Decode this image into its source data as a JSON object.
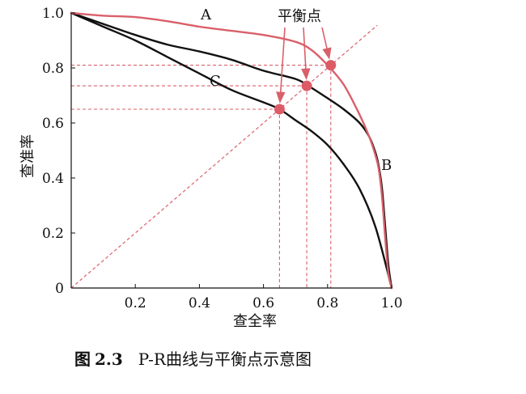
{
  "chart_data": {
    "type": "line",
    "xlabel": "查全率",
    "ylabel": "查准率",
    "xlim": [
      0,
      1
    ],
    "ylim": [
      0,
      1
    ],
    "x_ticks": [
      "0.2",
      "0.4",
      "0.6",
      "0.8",
      "1.0"
    ],
    "y_ticks": [
      "0",
      "0.2",
      "0.4",
      "0.6",
      "0.8",
      "1.0"
    ],
    "grid": false,
    "series": [
      {
        "name": "A",
        "color": "#d9606a",
        "points": [
          [
            0,
            1.0
          ],
          [
            0.1,
            0.99
          ],
          [
            0.2,
            0.985
          ],
          [
            0.3,
            0.97
          ],
          [
            0.4,
            0.95
          ],
          [
            0.5,
            0.935
          ],
          [
            0.6,
            0.92
          ],
          [
            0.7,
            0.895
          ],
          [
            0.75,
            0.865
          ],
          [
            0.8,
            0.81
          ],
          [
            0.85,
            0.74
          ],
          [
            0.9,
            0.63
          ],
          [
            0.93,
            0.55
          ],
          [
            0.95,
            0.48
          ],
          [
            0.96,
            0.43
          ],
          [
            0.97,
            0.33
          ],
          [
            0.98,
            0.18
          ],
          [
            0.99,
            0.05
          ],
          [
            1.0,
            0.0
          ]
        ]
      },
      {
        "name": "B",
        "color": "#111111",
        "points": [
          [
            0,
            1.0
          ],
          [
            0.1,
            0.96
          ],
          [
            0.2,
            0.92
          ],
          [
            0.3,
            0.885
          ],
          [
            0.4,
            0.86
          ],
          [
            0.5,
            0.83
          ],
          [
            0.6,
            0.79
          ],
          [
            0.7,
            0.76
          ],
          [
            0.74,
            0.735
          ],
          [
            0.8,
            0.69
          ],
          [
            0.85,
            0.65
          ],
          [
            0.9,
            0.6
          ],
          [
            0.93,
            0.55
          ],
          [
            0.95,
            0.49
          ],
          [
            0.96,
            0.44
          ],
          [
            0.97,
            0.36
          ],
          [
            0.98,
            0.22
          ],
          [
            0.99,
            0.08
          ],
          [
            1.0,
            0.0
          ]
        ]
      },
      {
        "name": "C",
        "color": "#111111",
        "points": [
          [
            0,
            1.0
          ],
          [
            0.1,
            0.95
          ],
          [
            0.2,
            0.9
          ],
          [
            0.3,
            0.84
          ],
          [
            0.4,
            0.78
          ],
          [
            0.5,
            0.72
          ],
          [
            0.6,
            0.675
          ],
          [
            0.65,
            0.65
          ],
          [
            0.7,
            0.61
          ],
          [
            0.75,
            0.57
          ],
          [
            0.8,
            0.52
          ],
          [
            0.85,
            0.45
          ],
          [
            0.9,
            0.36
          ],
          [
            0.95,
            0.22
          ],
          [
            1.0,
            0.0
          ]
        ]
      }
    ],
    "diagonal": {
      "from": [
        0,
        0
      ],
      "to": [
        0.955,
        0.955
      ],
      "color": "#d9606a"
    },
    "break_even_points": [
      {
        "curve": "A",
        "value": 0.81
      },
      {
        "curve": "B",
        "value": 0.735
      },
      {
        "curve": "C",
        "value": 0.65
      }
    ],
    "annotation": {
      "text": "平衡点"
    },
    "caption": {
      "figure": "图",
      "number": "2.3",
      "title": "P-R曲线与平衡点示意图"
    }
  }
}
